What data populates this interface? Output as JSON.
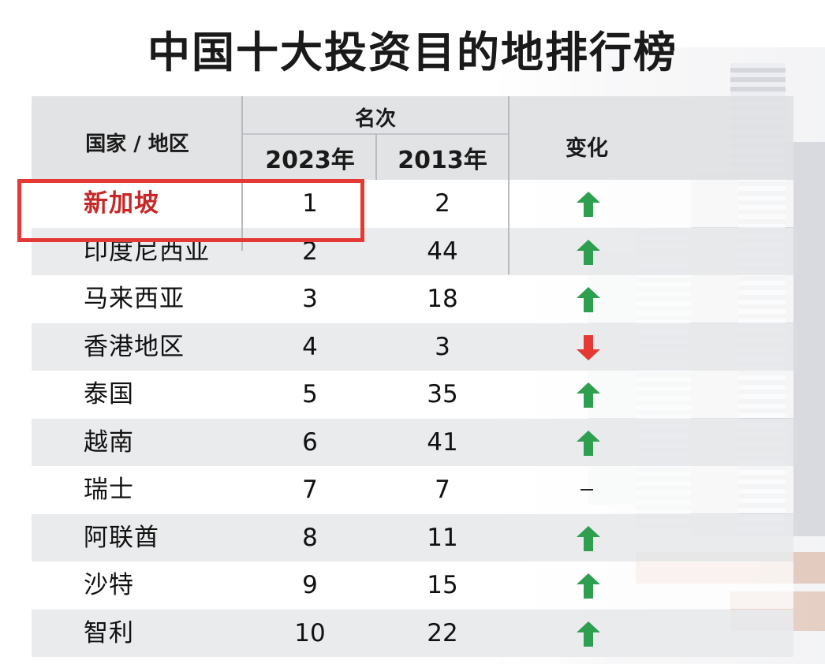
{
  "title": "中国十大投资目的地排行榜",
  "table": {
    "headers": {
      "country": "国家 / 地区",
      "rank_group": "名次",
      "year_2023": "2023年",
      "year_2013": "2013年",
      "change": "变化"
    },
    "rows": [
      {
        "name": "新加坡",
        "rank_2023": "1",
        "rank_2013": "2",
        "change": "up"
      },
      {
        "name": "印度尼西亚",
        "rank_2023": "2",
        "rank_2013": "44",
        "change": "up"
      },
      {
        "name": "马来西亚",
        "rank_2023": "3",
        "rank_2013": "18",
        "change": "up"
      },
      {
        "name": "香港地区",
        "rank_2023": "4",
        "rank_2013": "3",
        "change": "down"
      },
      {
        "name": "泰国",
        "rank_2023": "5",
        "rank_2013": "35",
        "change": "up"
      },
      {
        "name": "越南",
        "rank_2023": "6",
        "rank_2013": "41",
        "change": "up"
      },
      {
        "name": "瑞士",
        "rank_2023": "7",
        "rank_2013": "7",
        "change": "none"
      },
      {
        "name": "阿联酋",
        "rank_2023": "8",
        "rank_2013": "11",
        "change": "up"
      },
      {
        "name": "沙特",
        "rank_2023": "9",
        "rank_2013": "15",
        "change": "up"
      },
      {
        "name": "智利",
        "rank_2023": "10",
        "rank_2013": "22",
        "change": "up"
      }
    ]
  },
  "colors": {
    "up": "#2e9e4f",
    "down": "#e53935",
    "highlight": "#e53935",
    "highlight_text": "#c62828"
  },
  "icons": {
    "up": "arrow-up-icon",
    "down": "arrow-down-icon",
    "none": "dash-icon"
  }
}
